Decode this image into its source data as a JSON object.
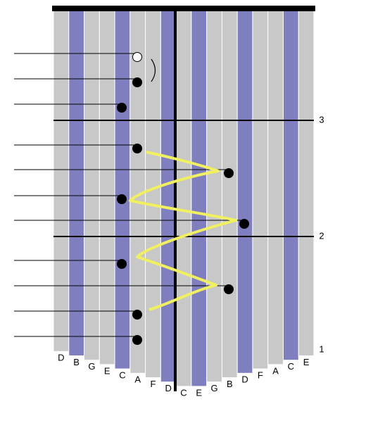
{
  "keys": [
    "D",
    "B",
    "G",
    "E",
    "C",
    "A",
    "F",
    "D",
    "C",
    "E",
    "G",
    "B",
    "D",
    "F",
    "A",
    "C",
    "E"
  ],
  "measures": [
    "1",
    "2",
    "3"
  ]
}
